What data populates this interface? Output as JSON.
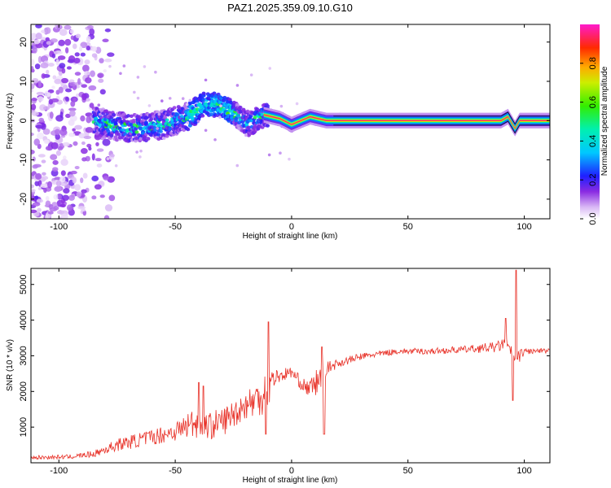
{
  "title": "PAZ1.2025.359.09.10.G10",
  "chart_data": [
    {
      "type": "heatmap",
      "xlabel": "Height of straight line (km)",
      "ylabel": "Frequency (Hz)",
      "xlim": [
        -112,
        111
      ],
      "ylim": [
        -25,
        24.5
      ],
      "xticks": [
        -100,
        -50,
        0,
        50,
        100
      ],
      "yticks": [
        -20,
        -10,
        0,
        10,
        20
      ],
      "colorbar": {
        "label": "Normalized spectral amplitude",
        "ticks": [
          0.0,
          0.2,
          0.4,
          0.6,
          0.8
        ],
        "range": [
          0,
          1
        ]
      },
      "ridge": [
        {
          "x": -112,
          "f": 0
        },
        {
          "x": -85,
          "f": 0
        },
        {
          "x": -75,
          "f": -1.5
        },
        {
          "x": -65,
          "f": -2
        },
        {
          "x": -55,
          "f": -1
        },
        {
          "x": -45,
          "f": 1
        },
        {
          "x": -38,
          "f": 4
        },
        {
          "x": -32,
          "f": 4
        },
        {
          "x": -25,
          "f": 2
        },
        {
          "x": -18,
          "f": -1
        },
        {
          "x": -12,
          "f": 1.5
        },
        {
          "x": -5,
          "f": 0.5
        },
        {
          "x": 0,
          "f": -1
        },
        {
          "x": 8,
          "f": 1
        },
        {
          "x": 15,
          "f": 0
        },
        {
          "x": 22,
          "f": 0
        },
        {
          "x": 90,
          "f": 0
        },
        {
          "x": 93,
          "f": 1
        },
        {
          "x": 96,
          "f": -2
        },
        {
          "x": 98,
          "f": 0
        },
        {
          "x": 111,
          "f": 0
        }
      ]
    },
    {
      "type": "line",
      "xlabel": "Height of straight line (km)",
      "ylabel": "SNR (10 * v/v)",
      "xlim": [
        -112,
        111
      ],
      "ylim": [
        0,
        5450
      ],
      "xticks": [
        -100,
        -50,
        0,
        50,
        100
      ],
      "yticks": [
        1000,
        2000,
        3000,
        4000,
        5000
      ],
      "color": "#e8332a",
      "envelope": [
        {
          "x": -112,
          "base": 130,
          "spread": 110
        },
        {
          "x": -95,
          "base": 150,
          "spread": 120
        },
        {
          "x": -85,
          "base": 220,
          "spread": 180
        },
        {
          "x": -75,
          "base": 450,
          "spread": 350
        },
        {
          "x": -60,
          "base": 650,
          "spread": 450
        },
        {
          "x": -50,
          "base": 800,
          "spread": 550
        },
        {
          "x": -42,
          "base": 1000,
          "spread": 900
        },
        {
          "x": -35,
          "base": 900,
          "spread": 800
        },
        {
          "x": -28,
          "base": 1100,
          "spread": 800
        },
        {
          "x": -20,
          "base": 1500,
          "spread": 800
        },
        {
          "x": -15,
          "base": 1600,
          "spread": 1100
        },
        {
          "x": -10,
          "base": 1900,
          "spread": 1200
        },
        {
          "x": -8,
          "base": 2300,
          "spread": 500
        },
        {
          "x": 0,
          "base": 2500,
          "spread": 300
        },
        {
          "x": 5,
          "base": 2100,
          "spread": 400
        },
        {
          "x": 8,
          "base": 2000,
          "spread": 500
        },
        {
          "x": 12,
          "base": 2200,
          "spread": 900
        },
        {
          "x": 15,
          "base": 2600,
          "spread": 350
        },
        {
          "x": 20,
          "base": 2750,
          "spread": 250
        },
        {
          "x": 30,
          "base": 2950,
          "spread": 200
        },
        {
          "x": 45,
          "base": 3100,
          "spread": 160
        },
        {
          "x": 60,
          "base": 3100,
          "spread": 180
        },
        {
          "x": 75,
          "base": 3150,
          "spread": 200
        },
        {
          "x": 88,
          "base": 3200,
          "spread": 300
        },
        {
          "x": 92,
          "base": 3300,
          "spread": 350
        },
        {
          "x": 96,
          "base": 2800,
          "spread": 500
        },
        {
          "x": 100,
          "base": 3100,
          "spread": 180
        },
        {
          "x": 111,
          "base": 3100,
          "spread": 150
        }
      ],
      "peaks": [
        {
          "x": -40,
          "y": 2250
        },
        {
          "x": -38,
          "y": 2150
        },
        {
          "x": -10,
          "y": 3950
        },
        {
          "x": -11,
          "y": 800
        },
        {
          "x": 13,
          "y": 3250
        },
        {
          "x": 14,
          "y": 800
        },
        {
          "x": 92,
          "y": 4050
        },
        {
          "x": 95,
          "y": 1750
        },
        {
          "x": 96.5,
          "y": 5400
        }
      ]
    }
  ]
}
